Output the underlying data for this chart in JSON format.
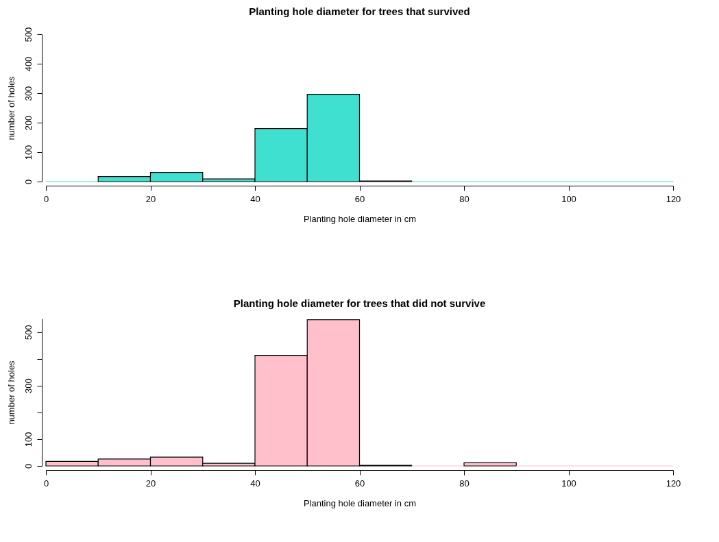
{
  "chart_data": [
    {
      "type": "histogram",
      "title": "Planting hole diameter for trees that survived",
      "xlabel": "Planting hole diameter in cm",
      "ylabel": "number of holes",
      "bins": [
        0,
        10,
        20,
        30,
        40,
        50,
        60,
        70,
        80,
        90,
        100,
        110,
        120
      ],
      "values": [
        0,
        17,
        31,
        9,
        180,
        296,
        2,
        0,
        0,
        0,
        0,
        0
      ],
      "color": "#40e0d0",
      "xlim": [
        0,
        120
      ],
      "xticks": [
        0,
        20,
        40,
        60,
        80,
        100,
        120
      ],
      "ylim": [
        0,
        500
      ],
      "yticks": [
        0,
        100,
        200,
        300,
        400,
        500
      ],
      "grid": false
    },
    {
      "type": "histogram",
      "title": "Planting hole diameter for trees that did not survive",
      "xlabel": "Planting hole diameter in cm",
      "ylabel": "number of holes",
      "bins": [
        0,
        10,
        20,
        30,
        40,
        50,
        60,
        70,
        80,
        90,
        100,
        110,
        120
      ],
      "values": [
        17,
        26,
        33,
        10,
        413,
        546,
        2,
        0,
        12,
        0,
        0,
        0
      ],
      "color": "#ffc0cb",
      "xlim": [
        0,
        120
      ],
      "xticks": [
        0,
        20,
        40,
        60,
        80,
        100,
        120
      ],
      "ylim": [
        0,
        550
      ],
      "yticks": [
        0,
        100,
        {
          "value": 200,
          "label": null
        },
        300,
        {
          "value": 400,
          "label": null
        },
        500
      ],
      "grid": false
    }
  ]
}
